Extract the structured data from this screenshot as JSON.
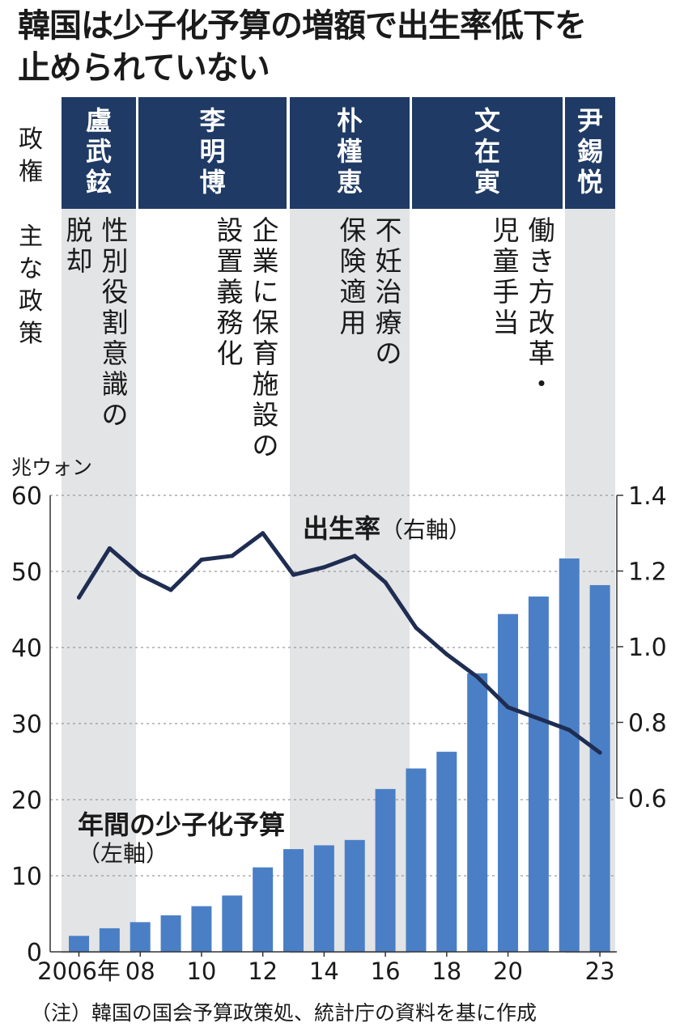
{
  "title": {
    "line1": "韓国は少子化予算の増額で出生率低下を",
    "line2": "止められていない"
  },
  "row_labels": {
    "government": "政権",
    "policy": "主な政策"
  },
  "administrations": [
    {
      "name": "盧武鉉",
      "policy": [
        "性別役割意識の",
        "脱却"
      ]
    },
    {
      "name": "李明博",
      "policy": [
        "企業に保育施設の",
        "設置義務化"
      ]
    },
    {
      "name": "朴槿恵",
      "policy": [
        "不妊治療の",
        "保険適用"
      ]
    },
    {
      "name": "文在寅",
      "policy": [
        "働き方改革・",
        "児童手当"
      ]
    },
    {
      "name": "尹錫悦",
      "policy": []
    }
  ],
  "colors": {
    "bar": "#4a7fc6",
    "line": "#1f2d52",
    "admin_header": "#1f3a64",
    "band": "#e3e4e6",
    "grid": "#9a9a9a"
  },
  "chart_data": {
    "type": "bar",
    "left_axis_unit": "兆ウォン",
    "x": [
      2006,
      2007,
      2008,
      2009,
      2010,
      2011,
      2012,
      2013,
      2014,
      2015,
      2016,
      2017,
      2018,
      2019,
      2020,
      2021,
      2022,
      2023
    ],
    "x_tick_labels": [
      {
        "year": 2006,
        "label": "2006年"
      },
      {
        "year": 2008,
        "label": "08"
      },
      {
        "year": 2010,
        "label": "10"
      },
      {
        "year": 2012,
        "label": "12"
      },
      {
        "year": 2014,
        "label": "14"
      },
      {
        "year": 2016,
        "label": "16"
      },
      {
        "year": 2018,
        "label": "18"
      },
      {
        "year": 2020,
        "label": "20"
      },
      {
        "year": 2023,
        "label": "23"
      }
    ],
    "series": [
      {
        "name": "年間の少子化予算",
        "axis_note": "（左軸）",
        "type": "bar",
        "axis": "left",
        "values": [
          2.1,
          3.1,
          3.9,
          4.8,
          6.0,
          7.4,
          11.1,
          13.5,
          14.0,
          14.7,
          21.4,
          24.1,
          26.3,
          36.6,
          44.4,
          46.7,
          51.7,
          48.2
        ]
      },
      {
        "name": "出生率",
        "axis_note": "（右軸）",
        "type": "line",
        "axis": "right",
        "values": [
          1.13,
          1.26,
          1.19,
          1.15,
          1.23,
          1.24,
          1.3,
          1.19,
          1.21,
          1.24,
          1.17,
          1.05,
          0.98,
          0.92,
          0.84,
          0.81,
          0.78,
          0.72
        ]
      }
    ],
    "left_axis": {
      "range": [
        0,
        60
      ],
      "ticks": [
        "0",
        "10",
        "20",
        "30",
        "40",
        "50",
        "60"
      ]
    },
    "right_axis": {
      "range": [
        0.6,
        1.4
      ],
      "ticks": [
        "0.6",
        "0.8",
        "1.0",
        "1.2",
        "1.4"
      ]
    },
    "grid": "dotted horizontal"
  },
  "source_note": "（注）韓国の国会予算政策処、統計庁の資料を基に作成"
}
